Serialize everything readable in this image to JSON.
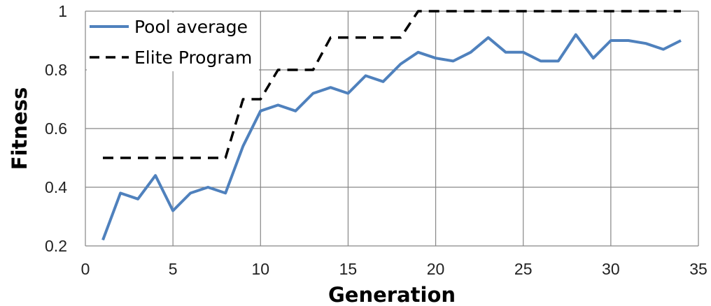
{
  "chart_data": {
    "type": "line",
    "xlabel": "Generation",
    "ylabel": "Fitness",
    "xlim": [
      0,
      35
    ],
    "ylim": [
      0.2,
      1.0
    ],
    "xticks": [
      0,
      5,
      10,
      15,
      20,
      25,
      30,
      35
    ],
    "yticks": [
      0.2,
      0.4,
      0.6,
      0.8,
      1.0
    ],
    "ytick_labels": [
      "0.2",
      "0.4",
      "0.6",
      "0.8",
      "1"
    ],
    "grid": true,
    "legend_position": "top-left",
    "series": [
      {
        "name": "Pool average",
        "style": "solid",
        "color": "#4f81bd",
        "x": [
          1,
          2,
          3,
          4,
          5,
          6,
          7,
          8,
          9,
          10,
          11,
          12,
          13,
          14,
          15,
          16,
          17,
          18,
          19,
          20,
          21,
          22,
          23,
          24,
          25,
          26,
          27,
          28,
          29,
          30,
          31,
          32,
          33,
          34
        ],
        "y": [
          0.22,
          0.38,
          0.36,
          0.44,
          0.32,
          0.38,
          0.4,
          0.38,
          0.54,
          0.66,
          0.68,
          0.66,
          0.72,
          0.74,
          0.72,
          0.78,
          0.76,
          0.82,
          0.86,
          0.84,
          0.83,
          0.86,
          0.91,
          0.86,
          0.86,
          0.83,
          0.83,
          0.92,
          0.84,
          0.9,
          0.9,
          0.89,
          0.87,
          0.9
        ]
      },
      {
        "name": "Elite Program",
        "style": "dashed",
        "color": "#000000",
        "x": [
          1,
          2,
          3,
          4,
          5,
          6,
          7,
          8,
          9,
          10,
          11,
          12,
          13,
          14,
          15,
          16,
          17,
          18,
          19,
          20,
          21,
          22,
          23,
          24,
          25,
          26,
          27,
          28,
          29,
          30,
          31,
          32,
          33,
          34
        ],
        "y": [
          0.5,
          0.5,
          0.5,
          0.5,
          0.5,
          0.5,
          0.5,
          0.5,
          0.7,
          0.7,
          0.8,
          0.8,
          0.8,
          0.91,
          0.91,
          0.91,
          0.91,
          0.91,
          1.0,
          1.0,
          1.0,
          1.0,
          1.0,
          1.0,
          1.0,
          1.0,
          1.0,
          1.0,
          1.0,
          1.0,
          1.0,
          1.0,
          1.0,
          1.0
        ]
      }
    ]
  }
}
